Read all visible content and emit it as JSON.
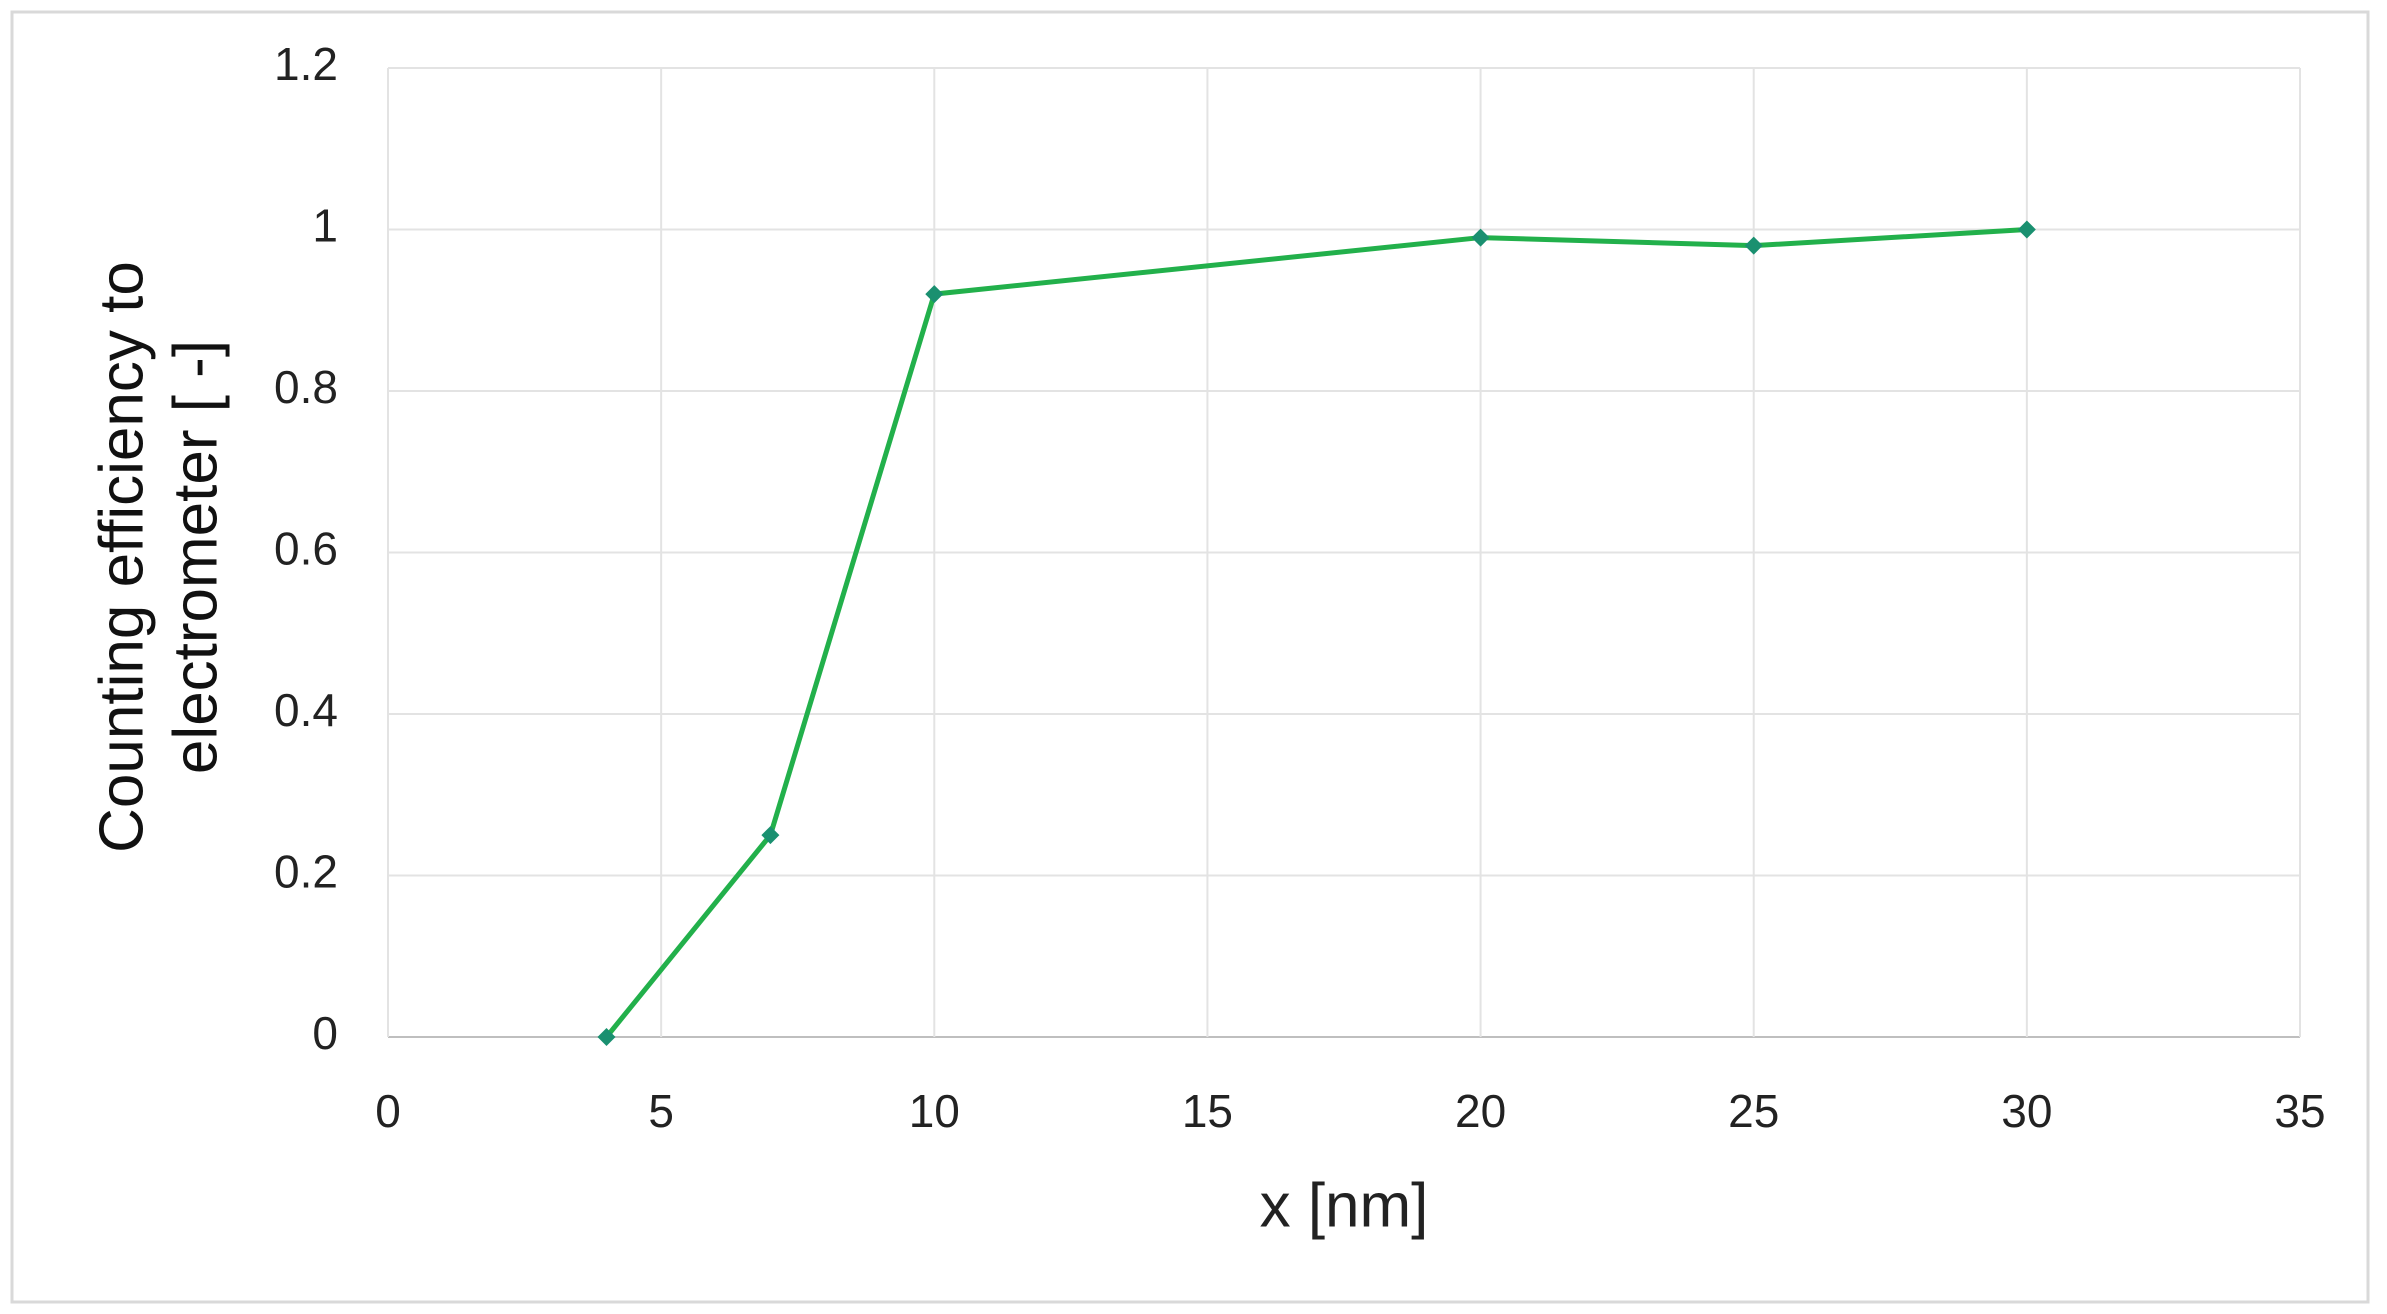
{
  "chart_data": {
    "type": "line",
    "x_label": "x [nm]",
    "y_label": "Counting efficiency to electrometer [ -]",
    "x": [
      4,
      7,
      10,
      20,
      25,
      30
    ],
    "values": [
      0,
      0.25,
      0.92,
      0.99,
      0.98,
      1.0
    ],
    "color": "#22b04b",
    "marker_color": "#1a9070",
    "xlim": [
      0,
      35
    ],
    "xticks": [
      0,
      5,
      10,
      15,
      20,
      25,
      30,
      35
    ],
    "ylim": [
      0,
      1.2
    ],
    "yticks": [
      0,
      0.2,
      0.4,
      0.6,
      0.8,
      1,
      1.2
    ],
    "grid": true
  }
}
